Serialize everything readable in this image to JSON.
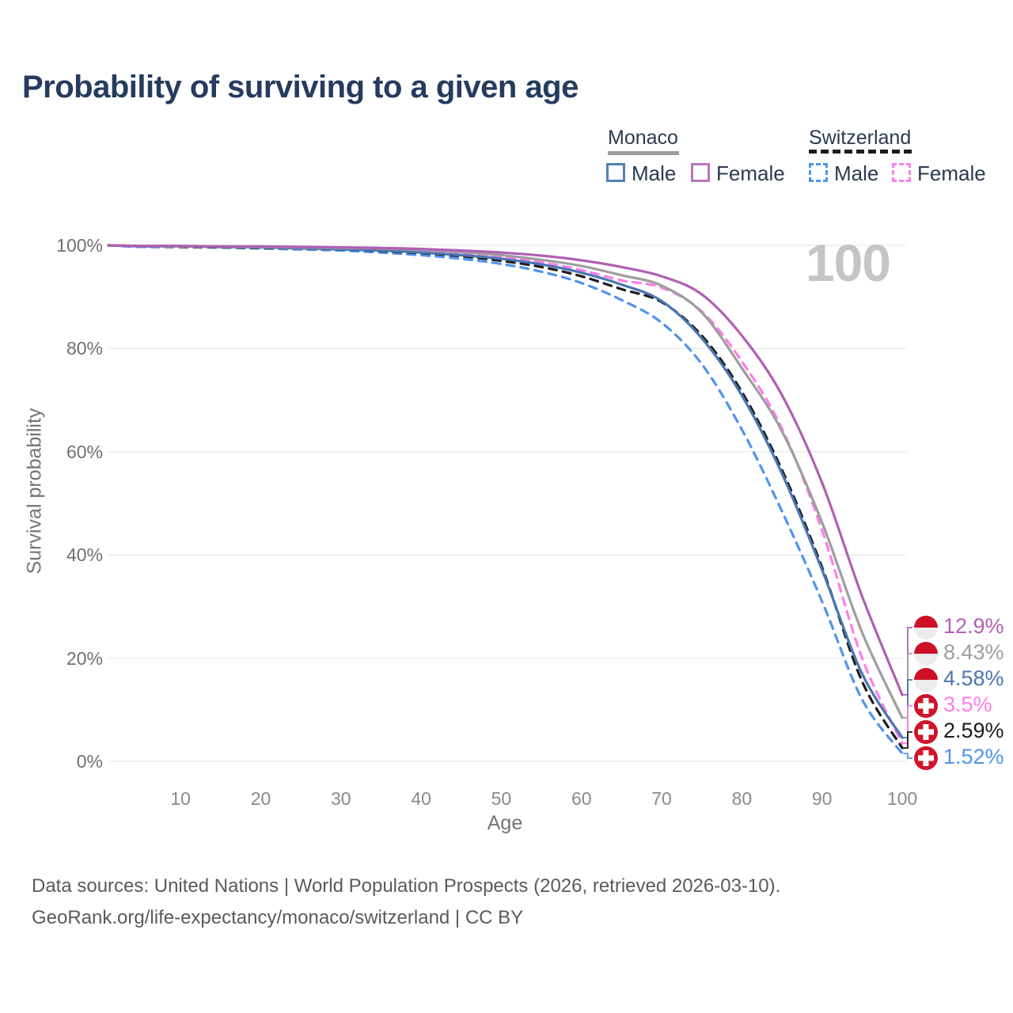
{
  "title": "Probability of surviving to a given age",
  "legend": {
    "groups": [
      {
        "country": "Monaco",
        "line_style": "solid",
        "line_color": "#9e9e9e",
        "items": [
          {
            "label": "Male",
            "color": "#5580b5",
            "dashed": false
          },
          {
            "label": "Female",
            "color": "#b876b8",
            "dashed": false
          }
        ]
      },
      {
        "country": "Switzerland",
        "line_style": "dashed",
        "line_color": "#1c1c1c",
        "items": [
          {
            "label": "Male",
            "color": "#4f94ef",
            "dashed": true
          },
          {
            "label": "Female",
            "color": "#ff7de9",
            "dashed": true
          }
        ]
      }
    ]
  },
  "chart_data": {
    "type": "line",
    "title": "Probability of surviving to a given age",
    "xlabel": "Age",
    "ylabel": "Survival probability",
    "x_ticks": [
      10,
      20,
      30,
      40,
      50,
      60,
      70,
      80,
      90,
      100
    ],
    "y_ticks": [
      "0%",
      "20%",
      "40%",
      "60%",
      "80%",
      "100%"
    ],
    "xlim": [
      1,
      100
    ],
    "ylim": [
      0,
      100
    ],
    "grid": "horizontal",
    "watermark_age": "100",
    "ages": [
      1,
      5,
      10,
      15,
      20,
      25,
      30,
      35,
      40,
      45,
      50,
      55,
      60,
      65,
      70,
      75,
      80,
      85,
      90,
      95,
      100
    ],
    "series": [
      {
        "name": "Monaco Female",
        "country": "Monaco",
        "sex": "female",
        "color": "#b05fb3",
        "dashed": false,
        "end_label": "12.9%",
        "values": [
          100,
          99.9,
          99.9,
          99.8,
          99.8,
          99.7,
          99.6,
          99.5,
          99.3,
          99.0,
          98.6,
          98.0,
          97.1,
          95.8,
          94.0,
          90.5,
          82.5,
          71.0,
          54.0,
          32.0,
          12.9
        ]
      },
      {
        "name": "Monaco Both sexes",
        "country": "Monaco",
        "sex": "total",
        "color": "#9e9e9e",
        "dashed": false,
        "end_label": "8.43%",
        "values": [
          100,
          99.9,
          99.8,
          99.8,
          99.7,
          99.6,
          99.5,
          99.4,
          99.1,
          98.7,
          98.1,
          97.2,
          96.0,
          94.2,
          92.2,
          87.0,
          76.2,
          64.0,
          46.3,
          25.0,
          8.43
        ]
      },
      {
        "name": "Monaco Male",
        "country": "Monaco",
        "sex": "male",
        "color": "#4a76b3",
        "dashed": false,
        "end_label": "4.58%",
        "values": [
          100,
          99.8,
          99.8,
          99.7,
          99.6,
          99.4,
          99.2,
          99.0,
          98.6,
          98.1,
          97.4,
          96.3,
          94.7,
          92.4,
          89.2,
          82.0,
          70.9,
          55.8,
          37.1,
          17.0,
          4.58
        ]
      },
      {
        "name": "Switzerland Female",
        "country": "Switzerland",
        "sex": "female",
        "color": "#ff7de9",
        "dashed": true,
        "end_label": "3.5%",
        "values": [
          100,
          99.8,
          99.8,
          99.7,
          99.6,
          99.5,
          99.4,
          99.2,
          98.9,
          98.4,
          97.7,
          96.7,
          95.2,
          93.2,
          91.8,
          87.2,
          77.5,
          64.5,
          44.8,
          20.0,
          3.5
        ]
      },
      {
        "name": "Switzerland Both sexes",
        "country": "Switzerland",
        "sex": "total",
        "color": "#1c1c1c",
        "dashed": true,
        "end_label": "2.59%",
        "values": [
          100,
          99.8,
          99.7,
          99.6,
          99.5,
          99.4,
          99.2,
          98.9,
          98.5,
          97.9,
          97.0,
          95.8,
          94.0,
          91.5,
          89.0,
          82.5,
          71.6,
          56.5,
          37.6,
          15.5,
          2.59
        ]
      },
      {
        "name": "Switzerland Male",
        "country": "Switzerland",
        "sex": "male",
        "color": "#4f94ef",
        "dashed": true,
        "end_label": "1.52%",
        "values": [
          100,
          99.7,
          99.7,
          99.6,
          99.4,
          99.2,
          99.0,
          98.6,
          98.1,
          97.4,
          96.4,
          94.9,
          92.7,
          89.4,
          85.0,
          77.0,
          64.3,
          48.5,
          31.0,
          12.0,
          1.52
        ]
      }
    ]
  },
  "flags": {
    "monaco_red": "#ce1126",
    "swiss_red": "#cf142b"
  },
  "footer": {
    "line1": "Data sources: United Nations | World Population Prospects (2026, retrieved 2026-03-10).",
    "line2": "GeoRank.org/life-expectancy/monaco/switzerland | CC BY"
  }
}
